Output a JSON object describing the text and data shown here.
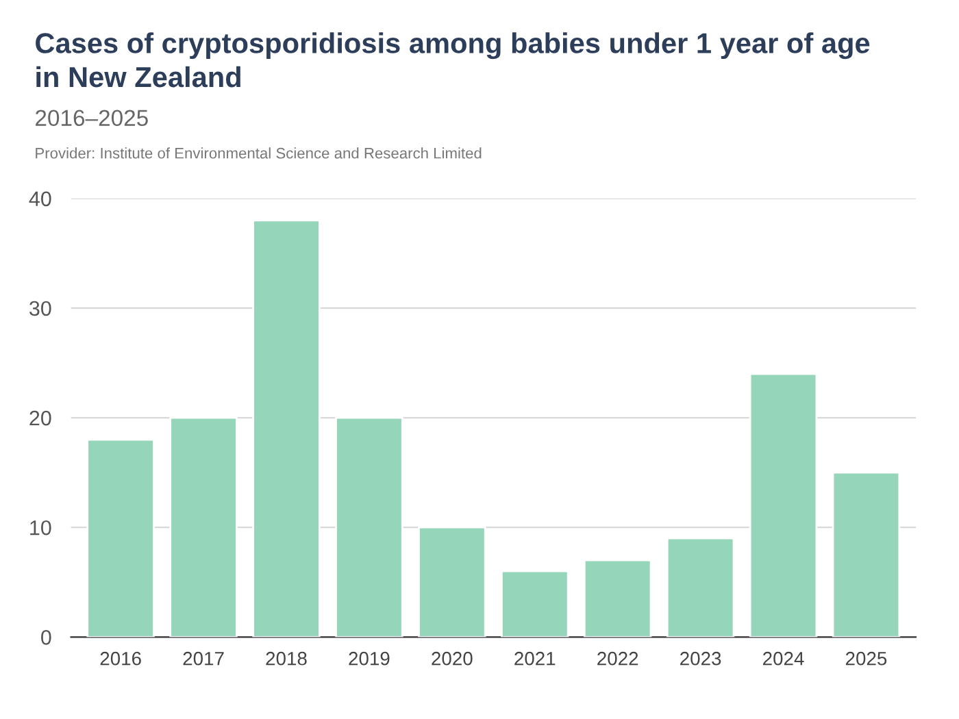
{
  "chart_data": {
    "type": "bar",
    "title": "Cases of cryptosporidiosis among babies under 1 year of age\nin New Zealand",
    "subtitle": "2016–2025",
    "annotations": [
      "Provider: Institute of Environmental Science and Research Limited"
    ],
    "categories": [
      "2016",
      "2017",
      "2018",
      "2019",
      "2020",
      "2021",
      "2022",
      "2023",
      "2024",
      "2025"
    ],
    "values": [
      18,
      20,
      38,
      20,
      10,
      6,
      7,
      9,
      24,
      15
    ],
    "color": "#95d5b9",
    "ylim": [
      0,
      40
    ],
    "yticks": [
      0,
      10,
      20,
      30,
      40
    ],
    "grid": "y"
  }
}
